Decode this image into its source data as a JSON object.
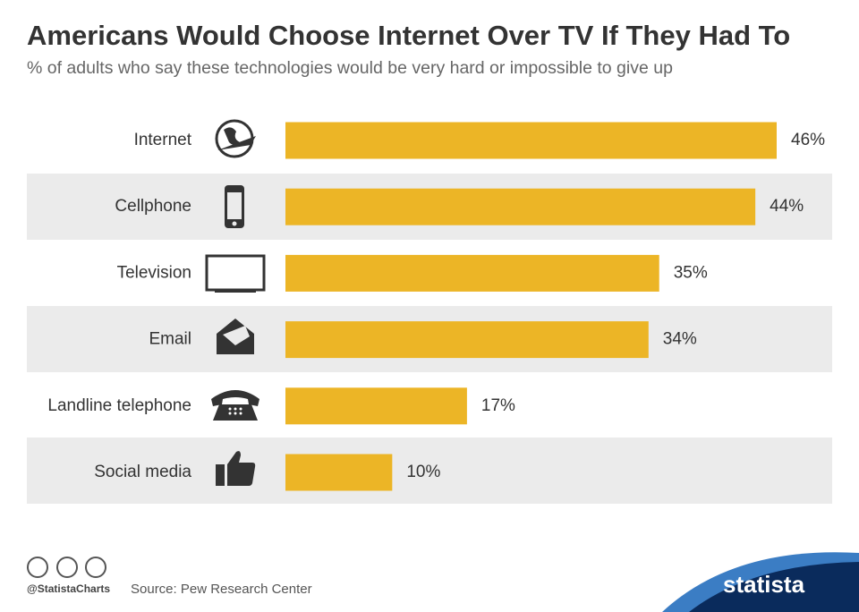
{
  "chart_data": {
    "type": "bar",
    "orientation": "horizontal",
    "title": "Americans Would Choose Internet Over TV If They Had To",
    "subtitle": "% of adults who say these technologies would be very hard or impossible to give up",
    "categories": [
      "Internet",
      "Cellphone",
      "Television",
      "Email",
      "Landline telephone",
      "Social media"
    ],
    "values": [
      46,
      44,
      35,
      34,
      17,
      10
    ],
    "value_labels": [
      "46%",
      "44%",
      "35%",
      "34%",
      "17%",
      "10%"
    ],
    "color": "#ecb526"
  },
  "footer": {
    "credit": "@StatistaCharts",
    "source": "Source: Pew Research Center",
    "brand": "statista"
  }
}
